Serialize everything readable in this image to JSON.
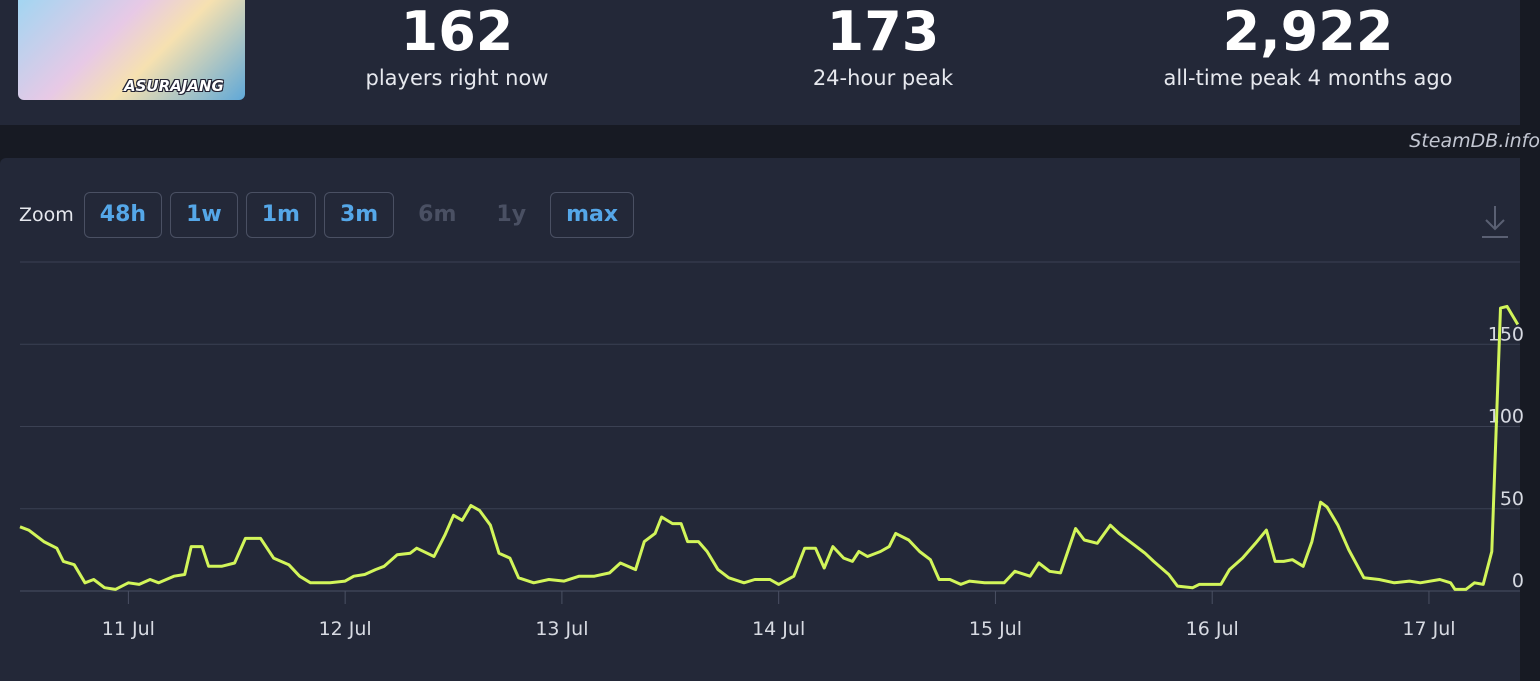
{
  "game": {
    "logo_text": "ASURAJANG"
  },
  "stats": [
    {
      "value": "162",
      "label": "players right now"
    },
    {
      "value": "173",
      "label": "24-hour peak"
    },
    {
      "value": "2,922",
      "label": "all-time peak 4 months ago"
    }
  ],
  "watermark": "SteamDB.info",
  "zoom": {
    "label": "Zoom",
    "options": [
      {
        "text": "48h",
        "enabled": true
      },
      {
        "text": "1w",
        "enabled": true
      },
      {
        "text": "1m",
        "enabled": true
      },
      {
        "text": "3m",
        "enabled": true
      },
      {
        "text": "6m",
        "enabled": false
      },
      {
        "text": "1y",
        "enabled": false
      },
      {
        "text": "max",
        "enabled": true
      }
    ]
  },
  "chart_data": {
    "type": "line",
    "color": "#d2f55a",
    "grid": true,
    "x": [
      10.5,
      10.54,
      10.61,
      10.67,
      10.7,
      10.75,
      10.8,
      10.84,
      10.89,
      10.94,
      11.0,
      11.05,
      11.1,
      11.14,
      11.21,
      11.26,
      11.29,
      11.34,
      11.37,
      11.43,
      11.49,
      11.54,
      11.61,
      11.67,
      11.74,
      11.79,
      11.84,
      11.93,
      12.0,
      12.04,
      12.09,
      12.14,
      12.18,
      12.24,
      12.3,
      12.33,
      12.41,
      12.46,
      12.5,
      12.54,
      12.58,
      12.62,
      12.67,
      12.71,
      12.76,
      12.8,
      12.87,
      12.94,
      13.01,
      13.08,
      13.15,
      13.22,
      13.27,
      13.34,
      13.38,
      13.43,
      13.46,
      13.51,
      13.55,
      13.58,
      13.63,
      13.67,
      13.72,
      13.77,
      13.84,
      13.89,
      13.96,
      14.0,
      14.07,
      14.12,
      14.17,
      14.21,
      14.25,
      14.3,
      14.34,
      14.37,
      14.41,
      14.47,
      14.51,
      14.54,
      14.6,
      14.65,
      14.7,
      14.74,
      14.79,
      14.84,
      14.88,
      14.95,
      15.04,
      15.09,
      15.16,
      15.2,
      15.25,
      15.3,
      15.37,
      15.41,
      15.47,
      15.53,
      15.57,
      15.64,
      15.69,
      15.73,
      15.8,
      15.84,
      15.91,
      15.94,
      16.01,
      16.04,
      16.08,
      16.14,
      16.2,
      16.25,
      16.29,
      16.33,
      16.37,
      16.42,
      16.46,
      16.5,
      16.53,
      16.58,
      16.63,
      16.7,
      16.77,
      16.84,
      16.91,
      16.96,
      17.05,
      17.1,
      17.12,
      17.17,
      17.21,
      17.25,
      17.29,
      17.33,
      17.36,
      17.41
    ],
    "values": [
      39,
      37,
      30,
      26,
      18,
      16,
      5,
      7,
      2,
      1,
      5,
      4,
      7,
      5,
      9,
      10,
      27,
      27,
      15,
      15,
      17,
      32,
      32,
      20,
      16,
      9,
      5,
      5,
      6,
      9,
      10,
      13,
      15,
      22,
      23,
      26,
      21,
      34,
      46,
      43,
      52,
      49,
      40,
      23,
      20,
      8,
      5,
      7,
      6,
      9,
      9,
      11,
      17,
      13,
      30,
      35,
      45,
      41,
      41,
      30,
      30,
      24,
      13,
      8,
      5,
      7,
      7,
      4,
      9,
      26,
      26,
      14,
      27,
      20,
      18,
      24,
      21,
      24,
      27,
      35,
      31,
      24,
      19,
      7,
      7,
      4,
      6,
      5,
      5,
      12,
      9,
      17,
      12,
      11,
      38,
      31,
      29,
      40,
      35,
      28,
      23,
      18,
      10,
      3,
      2,
      4,
      4,
      4,
      13,
      20,
      29,
      37,
      18,
      18,
      19,
      15,
      30,
      54,
      51,
      40,
      25,
      8,
      7,
      5,
      6,
      5,
      7,
      5,
      1,
      1,
      5,
      4,
      24,
      172,
      173,
      162
    ],
    "xlim": [
      10.5,
      17.42
    ],
    "xticks": [
      {
        "value": 11,
        "label": "11 Jul"
      },
      {
        "value": 12,
        "label": "12 Jul"
      },
      {
        "value": 13,
        "label": "13 Jul"
      },
      {
        "value": 14,
        "label": "14 Jul"
      },
      {
        "value": 15,
        "label": "15 Jul"
      },
      {
        "value": 16,
        "label": "16 Jul"
      },
      {
        "value": 17,
        "label": "17 Jul"
      }
    ],
    "ylim": [
      0,
      200
    ],
    "yticks": [
      0,
      50,
      100,
      150
    ]
  }
}
